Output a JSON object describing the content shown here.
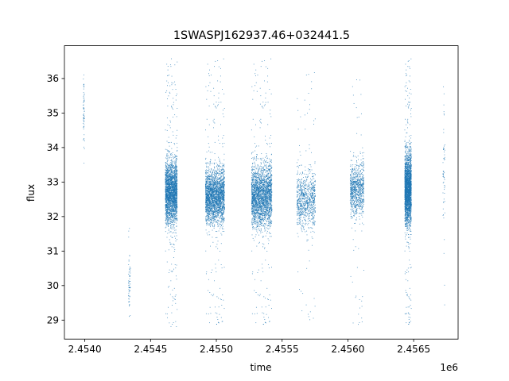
{
  "chart_data": {
    "type": "scatter",
    "title": "1SWASPJ162937.46+032441.5",
    "xlabel": "time",
    "ylabel": "flux",
    "x_offset_label": "1e6",
    "xlim": [
      2453845,
      2456838
    ],
    "ylim": [
      28.45,
      36.95
    ],
    "xticks": [
      2454000,
      2454500,
      2455000,
      2455500,
      2456000,
      2456500
    ],
    "xtick_labels": [
      "2.4540",
      "2.4545",
      "2.4550",
      "2.4555",
      "2.4560",
      "2.4565"
    ],
    "yticks": [
      29,
      30,
      31,
      32,
      33,
      34,
      35,
      36
    ],
    "ytick_labels": [
      "29",
      "30",
      "31",
      "32",
      "33",
      "34",
      "35",
      "36"
    ],
    "grid": false,
    "point_color": "#1f77b4",
    "clusters": [
      {
        "x_start": 2453985,
        "x_end": 2453995,
        "y_center": 35.0,
        "y_spread": 1.0,
        "y_min": 33.3,
        "y_max": 36.5,
        "density": "sparse"
      },
      {
        "x_start": 2454330,
        "x_end": 2454345,
        "y_center": 30.0,
        "y_spread": 0.9,
        "y_min": 28.8,
        "y_max": 31.9,
        "density": "sparse"
      },
      {
        "x_start": 2454610,
        "x_end": 2454700,
        "y_center": 32.7,
        "y_spread": 0.8,
        "y_min": 28.8,
        "y_max": 36.6,
        "density": "dense"
      },
      {
        "x_start": 2454915,
        "x_end": 2455060,
        "y_center": 32.6,
        "y_spread": 0.7,
        "y_min": 28.8,
        "y_max": 36.6,
        "density": "dense"
      },
      {
        "x_start": 2455265,
        "x_end": 2455420,
        "y_center": 32.6,
        "y_spread": 0.8,
        "y_min": 28.8,
        "y_max": 36.6,
        "density": "dense"
      },
      {
        "x_start": 2455610,
        "x_end": 2455750,
        "y_center": 32.5,
        "y_spread": 0.7,
        "y_min": 28.9,
        "y_max": 36.2,
        "density": "medium"
      },
      {
        "x_start": 2456015,
        "x_end": 2456120,
        "y_center": 32.8,
        "y_spread": 0.7,
        "y_min": 28.8,
        "y_max": 36.2,
        "density": "medium"
      },
      {
        "x_start": 2456430,
        "x_end": 2456480,
        "y_center": 32.8,
        "y_spread": 0.9,
        "y_min": 28.8,
        "y_max": 36.6,
        "density": "dense"
      },
      {
        "x_start": 2456720,
        "x_end": 2456735,
        "y_center": 33.5,
        "y_spread": 1.5,
        "y_min": 29.3,
        "y_max": 36.3,
        "density": "sparse"
      }
    ]
  }
}
